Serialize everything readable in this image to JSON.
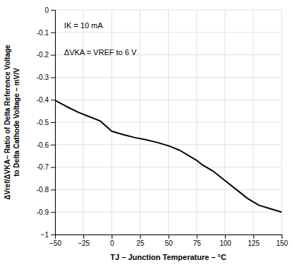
{
  "chart_data": {
    "type": "line",
    "x": [
      -50,
      -40,
      -30,
      -20,
      -10,
      0,
      10,
      20,
      30,
      40,
      50,
      60,
      70,
      75,
      80,
      90,
      100,
      110,
      120,
      125,
      130,
      140,
      150
    ],
    "values": [
      -0.403,
      -0.43,
      -0.455,
      -0.475,
      -0.495,
      -0.54,
      -0.555,
      -0.568,
      -0.578,
      -0.59,
      -0.605,
      -0.625,
      -0.655,
      -0.67,
      -0.69,
      -0.72,
      -0.76,
      -0.8,
      -0.84,
      -0.855,
      -0.87,
      -0.885,
      -0.9
    ],
    "color": "#000000",
    "xlim": [
      -50,
      150
    ],
    "ylim": [
      -1,
      0
    ],
    "xticks": [
      {
        "value": -50,
        "label": "−50"
      },
      {
        "value": -25,
        "label": "−25"
      },
      0,
      25,
      50,
      75,
      100,
      125,
      150
    ],
    "yticks": [
      0,
      -0.1,
      -0.2,
      -0.3,
      -0.4,
      -0.5,
      -0.6,
      -0.7,
      -0.8,
      -0.9,
      {
        "value": -1,
        "label": "−1"
      }
    ],
    "xlabel": "TJ – Junction Temperature – °C",
    "ylabel": [
      "ΔVref/ΔVKA– Ratio of Delta Reference Voltage",
      "to Delta Cathode Voltage – mV/V"
    ],
    "annotations": [
      "IK = 10 mA",
      "ΔVKA = VREF to 6 V"
    ],
    "grid": true
  }
}
